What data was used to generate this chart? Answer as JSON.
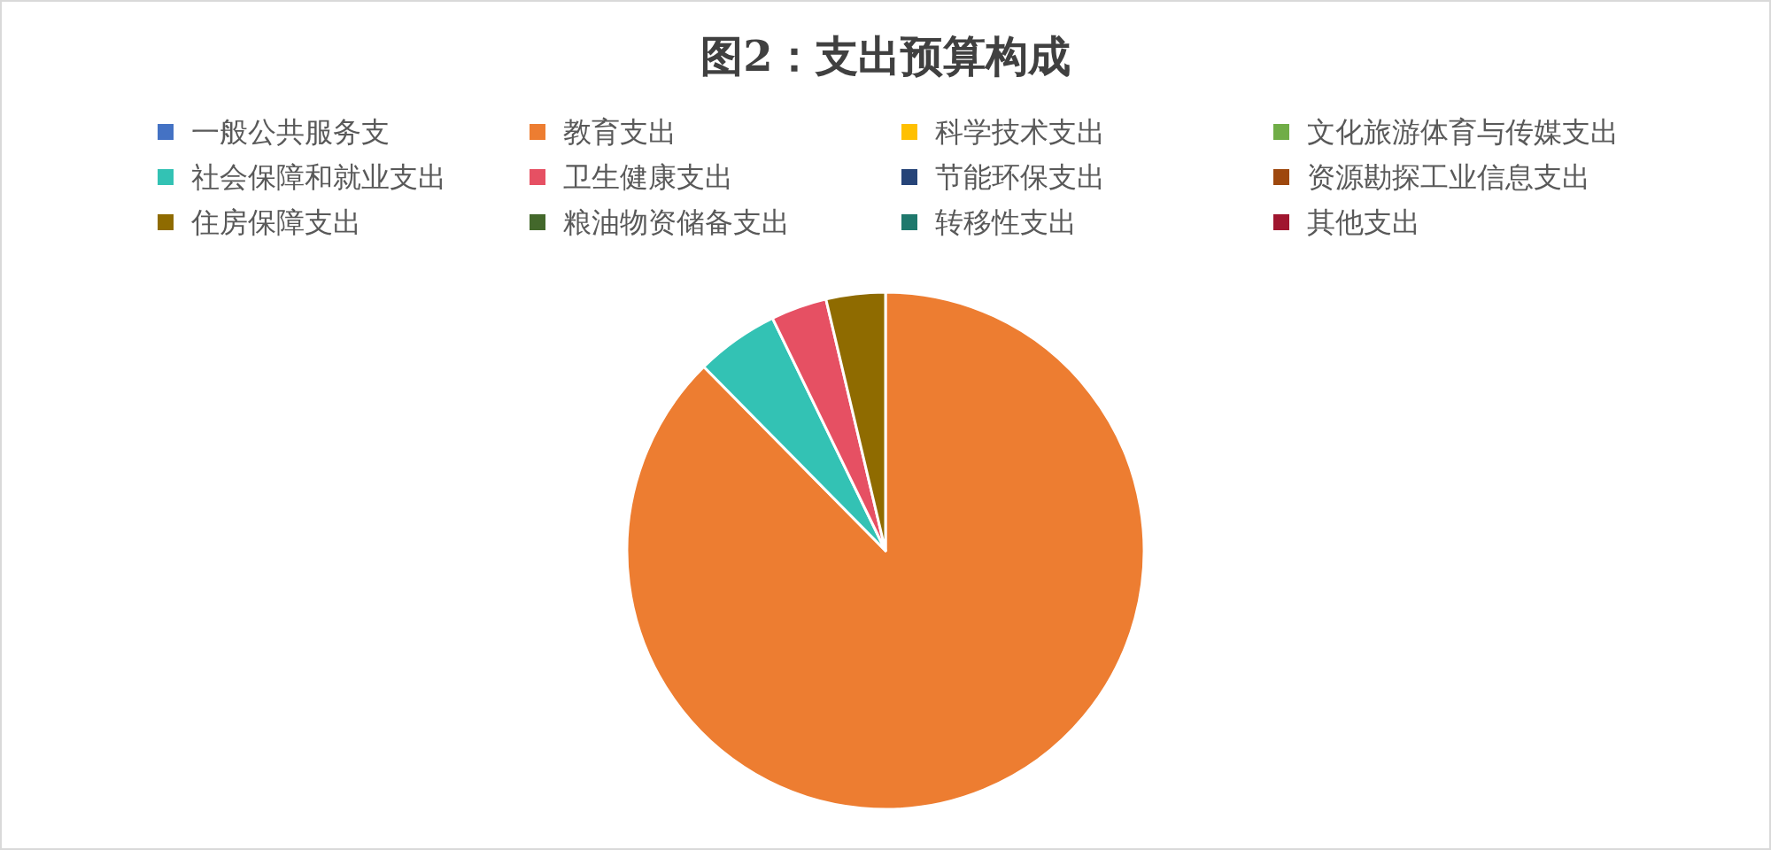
{
  "chart_data": {
    "type": "pie",
    "title": "图2：支出预算构成",
    "categories": [
      "一般公共服务支",
      "教育支出",
      "科学技术支出",
      "文化旅游体育与传媒支出",
      "社会保障和就业支出",
      "卫生健康支出",
      "节能环保支出",
      "资源勘探工业信息支出",
      "住房保障支出",
      "粮油物资储备支出",
      "转移性支出",
      "其他支出"
    ],
    "values": [
      0,
      87.6,
      0,
      0,
      5.2,
      3.5,
      0,
      0,
      3.7,
      0,
      0,
      0
    ],
    "colors": [
      "#4472c4",
      "#ed7d31",
      "#ffc000",
      "#70ad47",
      "#33c2b4",
      "#e65063",
      "#264478",
      "#9e480e",
      "#8f6b00",
      "#43682b",
      "#1e786c",
      "#a0162f"
    ],
    "legend": "top"
  }
}
